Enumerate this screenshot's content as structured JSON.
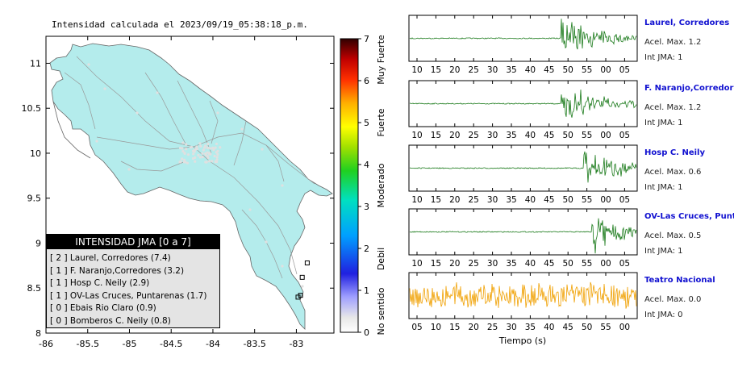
{
  "map": {
    "title": "Intensidad calculada el 2023/09/19_05:38:18_p.m.",
    "lon_ticks": [
      "-86",
      "-85.5",
      "-85",
      "-84.5",
      "-84",
      "-83.5",
      "-83"
    ],
    "lat_ticks": [
      "11",
      "10.5",
      "10",
      "9.5",
      "9",
      "8.5",
      "8"
    ],
    "land_color": "#b4ecec"
  },
  "colorbar": {
    "ticks": [
      "0",
      "1",
      "2",
      "3",
      "4",
      "5",
      "6",
      "7"
    ],
    "labels": [
      "No sentido",
      "Debil",
      "Moderado",
      "Fuerte",
      "Muy Fuerte"
    ]
  },
  "legend": {
    "title": "INTENSIDAD JMA [0 a 7]",
    "rows": [
      "[ 2 ]  Laurel, Corredores (7.4)",
      "[ 1 ]  F. Naranjo,Corredores (3.2)",
      "[ 1 ]  Hosp C. Neily (2.9)",
      "[ 1 ]  OV-Las Cruces, Puntarenas (1.7)",
      "[ 0 ]  Ebais Rio Claro (0.9)",
      "[ 0 ]  Bomberos C. Neily (0.8)"
    ]
  },
  "panels": [
    {
      "station": "Laurel, Corredores",
      "acel": "Acel. Max. 1.2",
      "jma": "Int JMA: 1",
      "color": "#1a7a1a",
      "ticks": [
        "10",
        "15",
        "20",
        "25",
        "30",
        "35",
        "40",
        "45",
        "50",
        "55",
        "00",
        "05"
      ]
    },
    {
      "station": "F. Naranjo,Corredores",
      "acel": "Acel. Max. 1.2",
      "jma": "Int JMA: 1",
      "color": "#1a7a1a",
      "ticks": [
        "10",
        "15",
        "20",
        "25",
        "30",
        "35",
        "40",
        "45",
        "50",
        "55",
        "00",
        "05"
      ]
    },
    {
      "station": "Hosp C. Neily",
      "acel": "Acel. Max. 0.6",
      "jma": "Int JMA: 1",
      "color": "#1a7a1a",
      "ticks": [
        "10",
        "15",
        "20",
        "25",
        "30",
        "35",
        "40",
        "45",
        "50",
        "55",
        "00",
        "05"
      ]
    },
    {
      "station": "OV-Las Cruces, Puntar",
      "acel": "Acel. Max. 0.5",
      "jma": "Int JMA: 1",
      "color": "#1a7a1a",
      "ticks": [
        "10",
        "15",
        "20",
        "25",
        "30",
        "35",
        "40",
        "45",
        "50",
        "55",
        "00",
        "05"
      ]
    },
    {
      "station": "Teatro Nacional",
      "acel": "Acel. Max. 0.0",
      "jma": "Int JMA: 0",
      "color": "#f0a000",
      "ticks": [
        "05",
        "10",
        "15",
        "20",
        "25",
        "30",
        "35",
        "40",
        "45",
        "50",
        "55",
        "00"
      ]
    }
  ],
  "xlabel": "Tiempo (s)",
  "station_label_color": "#1010d0",
  "chart_data": [
    {
      "type": "scatter",
      "x_axis": "longitude",
      "y_axis": "latitude",
      "xlim": [
        -86,
        -82.55
      ],
      "ylim": [
        8,
        11.3
      ],
      "markers": [
        {
          "x": -82.87,
          "y": 8.78
        },
        {
          "x": -82.93,
          "y": 8.62
        },
        {
          "x": -82.95,
          "y": 8.42
        },
        {
          "x": -82.98,
          "y": 8.4
        }
      ]
    },
    {
      "type": "line",
      "series": [
        {
          "name": "Laurel, Corredores",
          "onset": 47,
          "acel_max": 1.2
        },
        {
          "name": "F. Naranjo,Corredores",
          "onset": 47,
          "acel_max": 1.2
        },
        {
          "name": "Hosp C. Neily",
          "onset": 53,
          "acel_max": 0.6
        },
        {
          "name": "OV-Las Cruces, Puntar",
          "onset": 55,
          "acel_max": 0.5
        },
        {
          "name": "Teatro Nacional",
          "onset": 5,
          "acel_max": 0.0
        }
      ]
    }
  ]
}
